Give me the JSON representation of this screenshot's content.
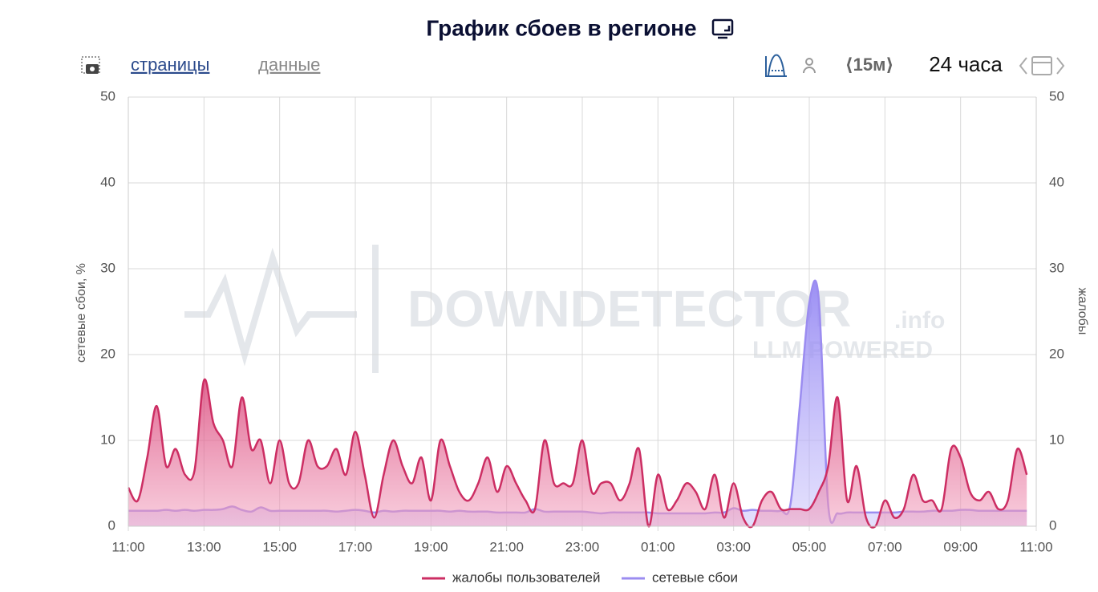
{
  "toolbar": {
    "pages": "страницы",
    "data": "данные",
    "interval": "⟨15м⟩",
    "range": "24 часа"
  },
  "watermark": {
    "brand": "DOWNDETECTOR",
    "suffix": ".info",
    "tagline": "LLM POWERED"
  },
  "chart_data": {
    "type": "line",
    "title": "График сбоев в регионе",
    "y_label": "сетевые сбои, %",
    "y2_label": "жалобы",
    "x": [
      0,
      0.25,
      0.5,
      0.75,
      1,
      1.25,
      1.5,
      1.75,
      2,
      2.25,
      2.5,
      2.75,
      3,
      3.25,
      3.5,
      3.75,
      4,
      4.25,
      4.5,
      4.75,
      5,
      5.25,
      5.5,
      5.75,
      6,
      6.25,
      6.5,
      6.75,
      7,
      7.25,
      7.5,
      7.75,
      8,
      8.25,
      8.5,
      8.75,
      9,
      9.25,
      9.5,
      9.75,
      10,
      10.25,
      10.5,
      10.75,
      11,
      11.25,
      11.5,
      11.75,
      12,
      12.25,
      12.5,
      12.75,
      13,
      13.25,
      13.5,
      13.75,
      14,
      14.25,
      14.5,
      14.75,
      15,
      15.25,
      15.5,
      15.75,
      16,
      16.25,
      16.5,
      16.75,
      17,
      17.25,
      17.5,
      17.75,
      18,
      18.25,
      18.5,
      18.75,
      19,
      19.25,
      19.5,
      19.75,
      20,
      20.25,
      20.5,
      20.75,
      21,
      21.25,
      21.5,
      21.75,
      22,
      22.25,
      22.5,
      22.75,
      23,
      23.25,
      23.5,
      23.75
    ],
    "xlim": [
      0,
      24
    ],
    "xticks": [
      {
        "value": 0,
        "label": "11:00"
      },
      {
        "value": 2,
        "label": "13:00"
      },
      {
        "value": 4,
        "label": "15:00"
      },
      {
        "value": 6,
        "label": "17:00"
      },
      {
        "value": 8,
        "label": "19:00"
      },
      {
        "value": 10,
        "label": "21:00"
      },
      {
        "value": 12,
        "label": "23:00"
      },
      {
        "value": 14,
        "label": "01:00"
      },
      {
        "value": 16,
        "label": "03:00"
      },
      {
        "value": 18,
        "label": "05:00"
      },
      {
        "value": 20,
        "label": "07:00"
      },
      {
        "value": 22,
        "label": "09:00"
      },
      {
        "value": 24,
        "label": "11:00"
      }
    ],
    "ylim": [
      0,
      50
    ],
    "yticks": [
      0,
      10,
      20,
      30,
      40,
      50
    ],
    "y2lim": [
      0,
      50
    ],
    "y2ticks": [
      0,
      10,
      20,
      30,
      40,
      50
    ],
    "grid": true,
    "legend": "bottom",
    "series": [
      {
        "name": "жалобы пользователей",
        "color": "#cc2e63",
        "axis": "y2",
        "values": [
          4.5,
          3,
          8,
          14,
          7,
          9,
          6,
          6.5,
          17,
          12,
          10,
          7,
          15,
          9,
          10,
          5,
          10,
          5,
          5,
          10,
          7,
          7,
          9,
          6,
          11,
          6,
          1,
          6,
          10,
          7,
          5,
          8,
          3,
          10,
          7,
          4,
          3,
          5,
          8,
          4,
          7,
          5,
          3,
          2,
          10,
          5,
          5,
          5,
          10,
          4,
          5,
          5,
          3,
          5,
          9,
          0,
          6,
          2,
          3,
          5,
          4,
          2,
          6,
          1,
          5,
          1,
          0,
          3,
          4,
          2,
          2,
          2,
          2,
          4,
          7,
          15,
          3,
          7,
          1,
          0,
          3,
          1,
          2,
          6,
          3,
          3,
          2,
          9,
          8,
          4,
          3,
          4,
          2,
          3,
          9,
          6
        ]
      },
      {
        "name": "сетевые сбои",
        "color": "#9b8cf0",
        "values": [
          1.8,
          1.8,
          1.8,
          1.8,
          1.9,
          1.8,
          1.9,
          1.8,
          1.9,
          1.9,
          2,
          2.3,
          1.9,
          1.7,
          2.2,
          1.8,
          1.8,
          1.8,
          1.8,
          1.8,
          1.8,
          1.8,
          1.7,
          1.8,
          1.9,
          1.8,
          1.6,
          1.8,
          1.7,
          1.8,
          1.8,
          1.8,
          1.8,
          1.8,
          1.7,
          1.8,
          1.7,
          1.7,
          1.7,
          1.6,
          1.6,
          1.6,
          1.6,
          2,
          1.7,
          1.7,
          1.7,
          1.7,
          1.7,
          1.6,
          1.5,
          1.6,
          1.6,
          1.6,
          1.6,
          1.6,
          1.5,
          1.5,
          1.5,
          1.5,
          1.5,
          1.5,
          1.6,
          1.6,
          2.1,
          1.8,
          1.9,
          1.8,
          1.8,
          1.8,
          2.5,
          14,
          26,
          26.5,
          2.5,
          1.5,
          1.6,
          1.6,
          1.6,
          1.6,
          1.6,
          1.6,
          1.7,
          1.7,
          1.7,
          1.8,
          1.8,
          1.8,
          1.9,
          1.9,
          1.8,
          1.8,
          1.8,
          1.8,
          1.8,
          1.8
        ]
      }
    ]
  }
}
